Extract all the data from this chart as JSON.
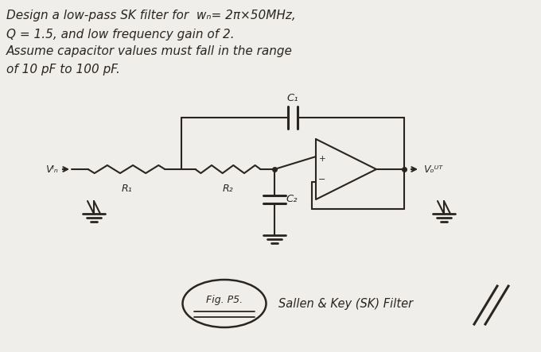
{
  "background_color": "#f0eeea",
  "text_color": "#2a2520",
  "line_color": "#2a2520",
  "title_lines": [
    "Design a low-pass SK filter for  wₙ= 2π×50MHz,",
    "Q = 1.5, and low frequency gain of 2.",
    "Assume capacitor values must fall in the range",
    "of 10 pF to 100 pF."
  ],
  "fig_label": "Fig. P5.",
  "circuit_label": "Sallen & Key (SK) Filter",
  "vin_label": "Vᴵₙ",
  "vout_label": "Vₒᵁᵀ",
  "r1_label": "R₁",
  "r2_label": "R₂",
  "c1_label": "C₁",
  "c2_label": "C₂",
  "figsize": [
    6.8,
    4.43
  ],
  "dpi": 100
}
